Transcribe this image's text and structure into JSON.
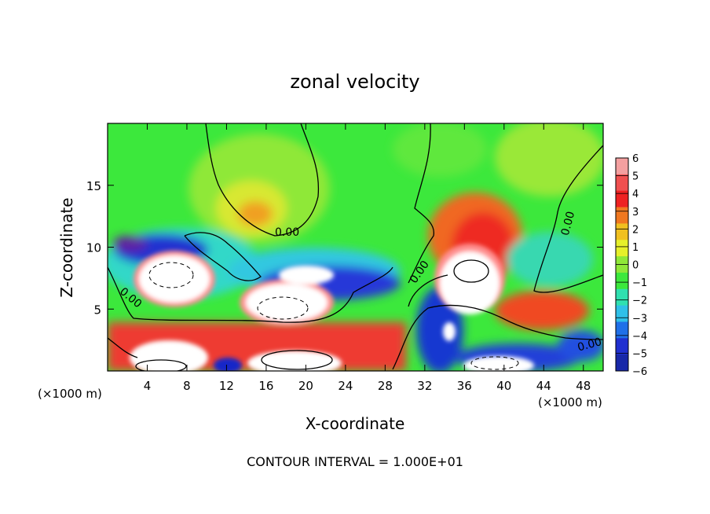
{
  "chart_data": {
    "type": "heatmap",
    "title": "zonal velocity",
    "xlabel": "X-coordinate",
    "ylabel": "Z-coordinate",
    "x_unit": "(×1000 m)",
    "y_unit": "(×1000 m)",
    "xlim": [
      0,
      50
    ],
    "ylim": [
      0,
      20
    ],
    "x_ticks": [
      "4",
      "8",
      "12",
      "16",
      "20",
      "24",
      "28",
      "32",
      "36",
      "40",
      "44",
      "48"
    ],
    "y_ticks": [
      "5",
      "10",
      "15"
    ],
    "colorbar": {
      "min": -6,
      "max": 6,
      "ticks": [
        "6",
        "5",
        "4",
        "3",
        "2",
        "1",
        "0",
        "−1",
        "−2",
        "−3",
        "−4",
        "−5",
        "−6"
      ]
    },
    "contour_labels": [
      "0.00",
      "0.00",
      "0.00",
      "0.00",
      "0.00",
      "0.00"
    ],
    "footer": "CONTOUR INTERVAL = 1.000E+01"
  }
}
